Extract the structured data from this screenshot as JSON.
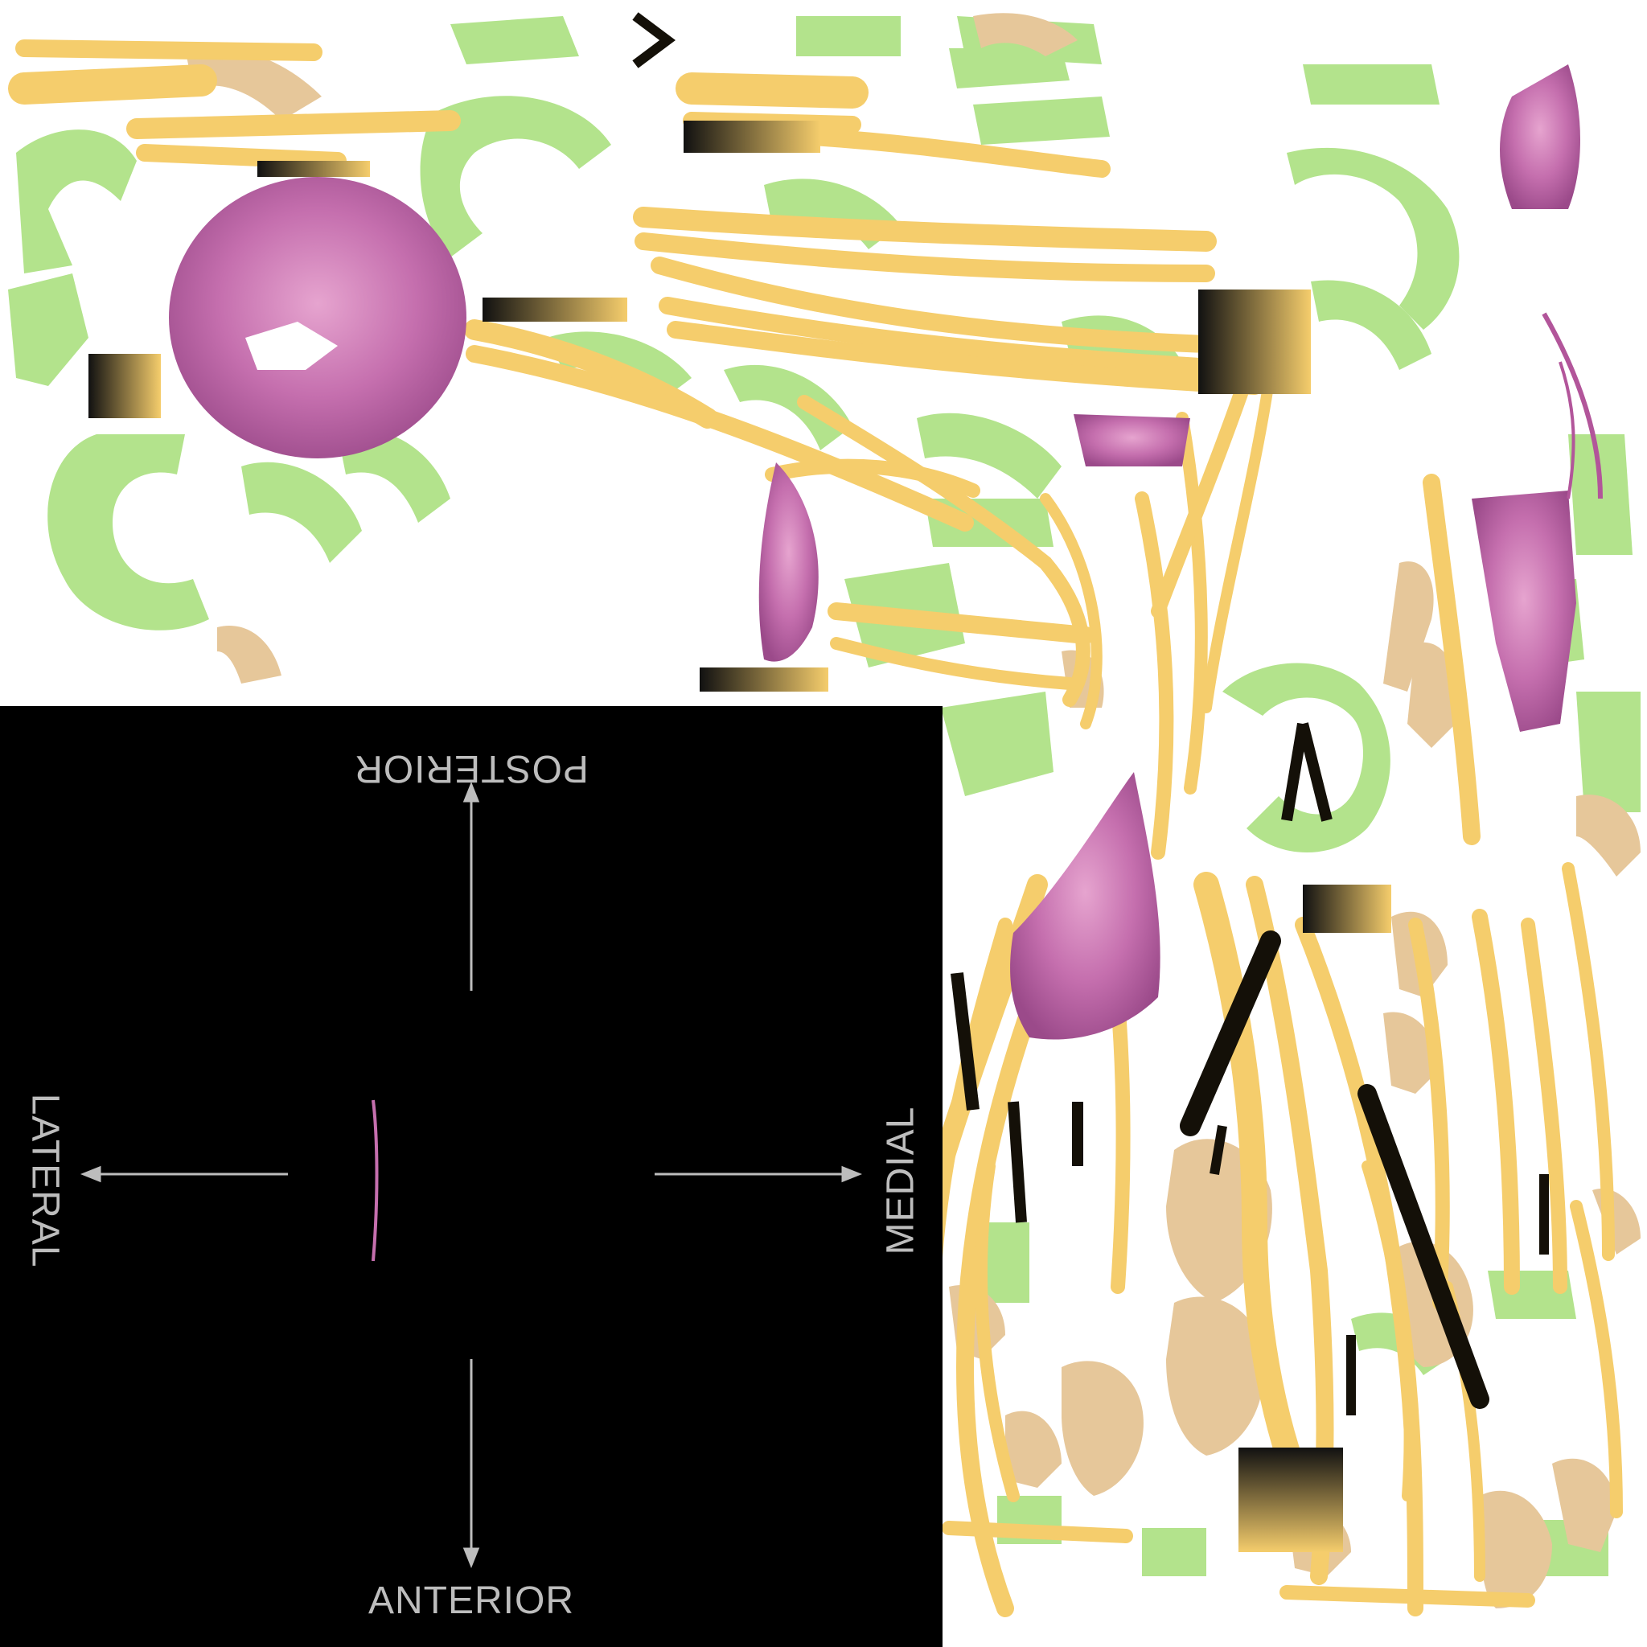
{
  "orientation_panel": {
    "labels": {
      "posterior": "POSTERIOR",
      "anterior": "ANTERIOR",
      "lateral": "LATERAL",
      "medial": "MEDIAL"
    },
    "label_color": "#bdbdbd",
    "background_color": "#000000"
  },
  "colors": {
    "green_region": "#b3e38c",
    "yellow_strand": "#f5cd6c",
    "tan_region": "#e6c79a",
    "pink_region": "#c56fae",
    "dark_band": "#1a140a"
  }
}
